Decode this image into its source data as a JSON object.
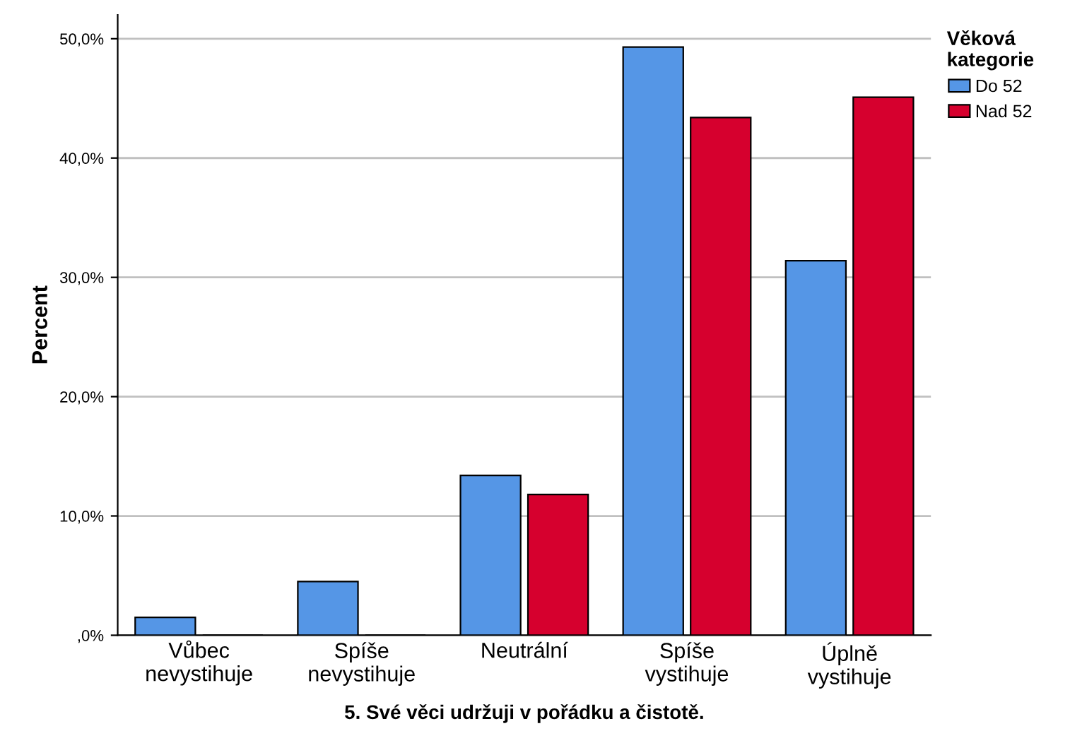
{
  "chart_data": {
    "type": "bar",
    "xlabel": "5. Své věci udržuji v pořádku a čistotě.",
    "ylabel": "Percent",
    "legend_title": "Věková\nkategorie",
    "categories": [
      "Vůbec\nnevystihuje",
      "Spíše\nnevystihuje",
      "Neutrální",
      "Spíše\nvystihuje",
      "Úplně\nvystihuje"
    ],
    "series": [
      {
        "name": "Do 52",
        "color": "#5596e6",
        "values": [
          1.5,
          4.5,
          13.4,
          49.3,
          31.4
        ]
      },
      {
        "name": "Nad 52",
        "color": "#d6002e",
        "values": [
          0,
          0,
          11.8,
          43.4,
          45.1
        ]
      }
    ],
    "ylim": [
      0,
      52
    ],
    "yticks": [
      {
        "value": 0,
        "label": ",0%"
      },
      {
        "value": 10,
        "label": "10,0%"
      },
      {
        "value": 20,
        "label": "20,0%"
      },
      {
        "value": 30,
        "label": "30,0%"
      },
      {
        "value": 40,
        "label": "40,0%"
      },
      {
        "value": 50,
        "label": "50,0%"
      }
    ],
    "grid": "y",
    "legend": "top right"
  }
}
